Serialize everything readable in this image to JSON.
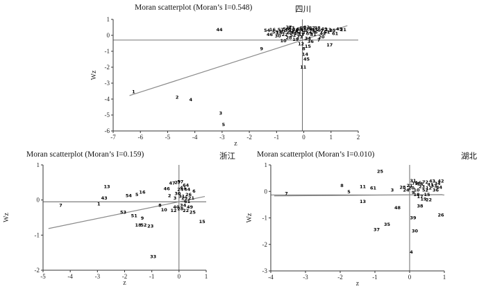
{
  "page": {
    "background": "#ffffff"
  },
  "chart_data": [
    {
      "type": "scatter",
      "id": "sichuan",
      "title": "Moran scatterplot (Moran’s I=0.548)",
      "region": "四川",
      "morans_i": 0.548,
      "xlabel": "z",
      "ylabel": "Wz",
      "xlim": [
        -7,
        2
      ],
      "ylim": [
        -6,
        1
      ],
      "xticks": [
        -7,
        -6,
        -5,
        -4,
        -3,
        -2,
        -1,
        0,
        1,
        2
      ],
      "yticks": [
        1,
        0,
        -1,
        -2,
        -3,
        -4,
        -5,
        -6
      ],
      "grid": false,
      "mean_x": -0.05,
      "mean_y": -0.3,
      "regression": {
        "slope": 0.548,
        "x_start": -6.4,
        "x_end": 1.6
      },
      "axis_color": "#333333",
      "crosshair_color": "#444444",
      "line_color": "#8a8a8a",
      "point_color": "#000000",
      "points": [
        [
          "1",
          -6.25,
          -3.55
        ],
        [
          "2",
          -4.65,
          -3.9
        ],
        [
          "4",
          -4.15,
          -4.05
        ],
        [
          "3",
          -3.05,
          -4.9
        ],
        [
          "5",
          -2.95,
          -5.6
        ],
        [
          "44",
          -3.1,
          0.35
        ],
        [
          "9",
          -1.55,
          -0.85
        ],
        [
          "54",
          -1.35,
          0.3
        ],
        [
          "16",
          -1.15,
          0.35
        ],
        [
          "46",
          -1.25,
          0.05
        ],
        [
          "55",
          -1.05,
          0.2
        ],
        [
          "30",
          -0.95,
          -0.05
        ],
        [
          "57",
          -0.85,
          0.35
        ],
        [
          "18",
          -0.9,
          0.15
        ],
        [
          "50",
          -0.8,
          0.25
        ],
        [
          "10",
          -0.75,
          -0.35
        ],
        [
          "22",
          -0.7,
          0.05
        ],
        [
          "35",
          -0.6,
          0.3
        ],
        [
          "56",
          -0.65,
          0.4
        ],
        [
          "28",
          -0.55,
          -0.15
        ],
        [
          "27",
          -0.55,
          0.5
        ],
        [
          "60",
          -0.5,
          0.15
        ],
        [
          "39",
          -0.45,
          0.3
        ],
        [
          "63",
          -0.45,
          0.45
        ],
        [
          "52",
          -0.4,
          0.0
        ],
        [
          "47",
          -0.35,
          0.2
        ],
        [
          "26",
          -0.3,
          0.35
        ],
        [
          "19",
          -0.3,
          -0.25
        ],
        [
          "58",
          -0.25,
          0.1
        ],
        [
          "41",
          -0.2,
          0.25
        ],
        [
          "23",
          -0.15,
          -0.1
        ],
        [
          "64",
          -0.15,
          0.4
        ],
        [
          "65",
          -0.05,
          0.45
        ],
        [
          "33",
          -0.1,
          0.05
        ],
        [
          "12",
          -0.1,
          -0.55
        ],
        [
          "11",
          -0.02,
          -2.0
        ],
        [
          "48",
          0.0,
          0.3
        ],
        [
          "8",
          0.0,
          -0.85
        ],
        [
          "37",
          0.05,
          0.15
        ],
        [
          "14",
          0.05,
          -1.2
        ],
        [
          "45",
          0.1,
          -1.5
        ],
        [
          "32",
          0.1,
          0.5
        ],
        [
          "34",
          0.15,
          -0.2
        ],
        [
          "15",
          0.15,
          -0.7
        ],
        [
          "59",
          0.2,
          0.1
        ],
        [
          "24",
          0.2,
          0.4
        ],
        [
          "36",
          0.25,
          -0.4
        ],
        [
          "29",
          0.3,
          0.25
        ],
        [
          "62",
          0.3,
          0.45
        ],
        [
          "31",
          0.35,
          0.05
        ],
        [
          "53",
          0.4,
          0.35
        ],
        [
          "6",
          0.45,
          0.2
        ],
        [
          "38",
          0.5,
          0.45
        ],
        [
          "7",
          0.55,
          -0.3
        ],
        [
          "40",
          0.6,
          0.3
        ],
        [
          "20",
          0.65,
          -0.1
        ],
        [
          "42",
          0.7,
          0.1
        ],
        [
          "49",
          0.75,
          0.4
        ],
        [
          "51",
          0.85,
          0.2
        ],
        [
          "13",
          0.9,
          0.35
        ],
        [
          "17",
          0.95,
          -0.6
        ],
        [
          "25",
          1.05,
          0.3
        ],
        [
          "61",
          1.15,
          0.1
        ],
        [
          "43",
          1.3,
          0.4
        ],
        [
          "21",
          1.45,
          0.35
        ]
      ]
    },
    {
      "type": "scatter",
      "id": "zhejiang",
      "title": "Moran scatterplot (Moran’s I=0.159)",
      "region": "浙江",
      "morans_i": 0.159,
      "xlabel": "z",
      "ylabel": "Wz",
      "xlim": [
        -5,
        1
      ],
      "ylim": [
        -2,
        1
      ],
      "xticks": [
        -5,
        -4,
        -3,
        -2,
        -1,
        0,
        1
      ],
      "yticks": [
        1,
        0,
        -1,
        -2
      ],
      "grid": false,
      "mean_x": 0.0,
      "mean_y": -0.05,
      "regression": {
        "slope": 0.159,
        "x_start": -4.8,
        "x_end": 0.95
      },
      "axis_color": "#333333",
      "crosshair_color": "#444444",
      "line_color": "#8a8a8a",
      "point_color": "#000000",
      "points": [
        [
          "7",
          -4.35,
          -0.15
        ],
        [
          "1",
          -2.95,
          -0.12
        ],
        [
          "13",
          -2.65,
          0.38
        ],
        [
          "43",
          -2.75,
          0.05
        ],
        [
          "54",
          -1.85,
          0.12
        ],
        [
          "5",
          -1.55,
          0.15
        ],
        [
          "16",
          -1.35,
          0.22
        ],
        [
          "53",
          -2.05,
          -0.35
        ],
        [
          "51",
          -1.65,
          -0.45
        ],
        [
          "9",
          -1.35,
          -0.52
        ],
        [
          "18",
          -1.5,
          -0.72
        ],
        [
          "52",
          -1.3,
          -0.72
        ],
        [
          "23",
          -1.05,
          -0.75
        ],
        [
          "33",
          -0.95,
          -1.62
        ],
        [
          "8",
          -0.7,
          -0.15
        ],
        [
          "10",
          -0.55,
          -0.28
        ],
        [
          "46",
          -0.45,
          0.32
        ],
        [
          "2",
          -0.35,
          0.12
        ],
        [
          "47",
          -0.25,
          0.48
        ],
        [
          "12",
          -0.2,
          -0.3
        ],
        [
          "3",
          -0.15,
          0.05
        ],
        [
          "40",
          -0.1,
          -0.2
        ],
        [
          "27",
          -0.05,
          0.5
        ],
        [
          "30",
          -0.05,
          0.18
        ],
        [
          "57",
          0.05,
          0.52
        ],
        [
          "24",
          0.05,
          0.3
        ],
        [
          "28",
          0.05,
          -0.25
        ],
        [
          "31",
          0.1,
          0.1
        ],
        [
          "41",
          0.15,
          0.35
        ],
        [
          "34",
          0.15,
          -0.15
        ],
        [
          "29",
          0.2,
          0.05
        ],
        [
          "64",
          0.25,
          0.42
        ],
        [
          "22",
          0.25,
          -0.3
        ],
        [
          "44",
          0.3,
          0.3
        ],
        [
          "61",
          0.3,
          -0.05
        ],
        [
          "26",
          0.35,
          0.15
        ],
        [
          "49",
          0.4,
          -0.2
        ],
        [
          "21",
          0.45,
          0.05
        ],
        [
          "25",
          0.5,
          -0.35
        ],
        [
          "6",
          0.55,
          0.25
        ],
        [
          "15",
          0.85,
          -0.62
        ]
      ]
    },
    {
      "type": "scatter",
      "id": "hubei",
      "title": "Moran scatterplot (Moran’s I=0.010)",
      "region": "湖北",
      "morans_i": 0.01,
      "xlabel": "z",
      "ylabel": "Wz",
      "xlim": [
        -4,
        1
      ],
      "ylim": [
        -3,
        1
      ],
      "xticks": [
        -4,
        -3,
        -2,
        -1,
        0,
        1
      ],
      "yticks": [
        1,
        0,
        -1,
        -2,
        -3
      ],
      "grid": false,
      "mean_x": 0.0,
      "mean_y": -0.13,
      "regression": {
        "slope": 0.01,
        "x_start": -3.9,
        "x_end": 0.95
      },
      "axis_color": "#333333",
      "crosshair_color": "#444444",
      "line_color": "#8a8a8a",
      "point_color": "#000000",
      "points": [
        [
          "25",
          -0.85,
          0.75
        ],
        [
          "7",
          -3.55,
          -0.08
        ],
        [
          "8",
          -1.95,
          0.22
        ],
        [
          "5",
          -1.75,
          -0.02
        ],
        [
          "11",
          -1.35,
          0.18
        ],
        [
          "13",
          -1.35,
          -0.38
        ],
        [
          "61",
          -1.05,
          0.12
        ],
        [
          "3",
          -0.5,
          0.05
        ],
        [
          "48",
          -0.35,
          -0.62
        ],
        [
          "35",
          -0.65,
          -1.25
        ],
        [
          "37",
          -0.95,
          -1.45
        ],
        [
          "4",
          0.05,
          -2.3
        ],
        [
          "39",
          0.1,
          -1.0
        ],
        [
          "30",
          0.15,
          -1.5
        ],
        [
          "26",
          0.9,
          -0.9
        ],
        [
          "9",
          0.1,
          -0.05
        ],
        [
          "18",
          0.2,
          -0.12
        ],
        [
          "10",
          0.2,
          0.05
        ],
        [
          "20",
          0.05,
          0.12
        ],
        [
          "21",
          0.0,
          0.22
        ],
        [
          "24",
          -0.1,
          0.05
        ],
        [
          "28",
          -0.2,
          0.15
        ],
        [
          "79",
          0.15,
          0.3
        ],
        [
          "16",
          0.25,
          0.32
        ],
        [
          "31",
          0.1,
          0.4
        ],
        [
          "23",
          0.35,
          0.18
        ],
        [
          "14",
          0.3,
          0.28
        ],
        [
          "72",
          0.45,
          0.35
        ],
        [
          "52",
          0.45,
          0.05
        ],
        [
          "12",
          0.55,
          0.12
        ],
        [
          "43",
          0.65,
          0.38
        ],
        [
          "15",
          0.5,
          -0.12
        ],
        [
          "17",
          0.3,
          -0.2
        ],
        [
          "19",
          0.4,
          -0.3
        ],
        [
          "22",
          0.55,
          -0.32
        ],
        [
          "38",
          0.3,
          -0.55
        ],
        [
          "33",
          0.7,
          0.2
        ],
        [
          "41",
          0.6,
          0.25
        ],
        [
          "34",
          0.8,
          0.3
        ],
        [
          "36",
          0.75,
          0.05
        ],
        [
          "42",
          0.9,
          0.38
        ],
        [
          "44",
          0.85,
          0.15
        ]
      ]
    }
  ]
}
